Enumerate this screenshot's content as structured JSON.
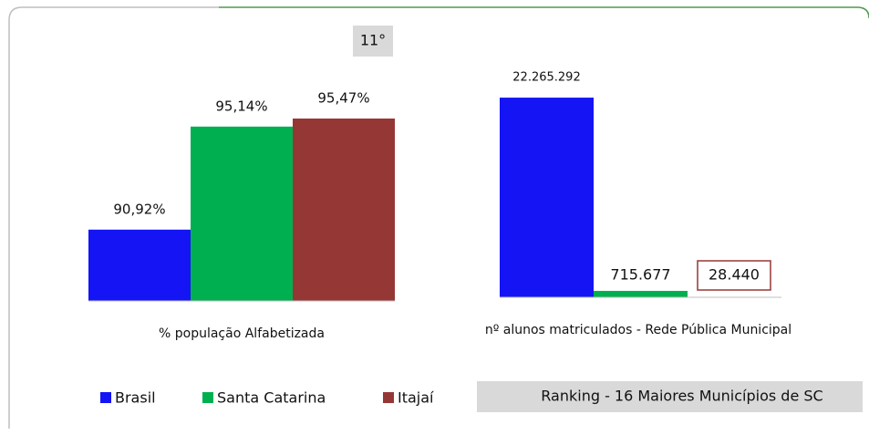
{
  "chart_data": [
    {
      "type": "bar",
      "xlabel": "% população Alfabetizada",
      "categories": [
        "Brasil",
        "Santa Catarina",
        "Itajaí"
      ],
      "values": [
        90.92,
        95.14,
        95.47
      ],
      "value_labels": [
        "90,92%",
        "95,14%",
        "95,47%"
      ],
      "colors": [
        "#1414f5",
        "#00b050",
        "#953735"
      ],
      "ylim": [
        88,
        97
      ]
    },
    {
      "type": "bar",
      "xlabel": "nº alunos matriculados - Rede Pública Municipal",
      "categories": [
        "Brasil",
        "Santa Catarina",
        "Itajaí"
      ],
      "values": [
        22265292,
        715677,
        28440
      ],
      "value_labels": [
        "22.265.292",
        "715.677",
        "28.440"
      ],
      "colors": [
        "#1414f5",
        "#00b050",
        "#953735"
      ],
      "ylim": [
        0,
        24000000
      ]
    }
  ],
  "badge": "11°",
  "ranking": "Ranking - 16 Maiores Municípios de SC",
  "legend": "bottom"
}
